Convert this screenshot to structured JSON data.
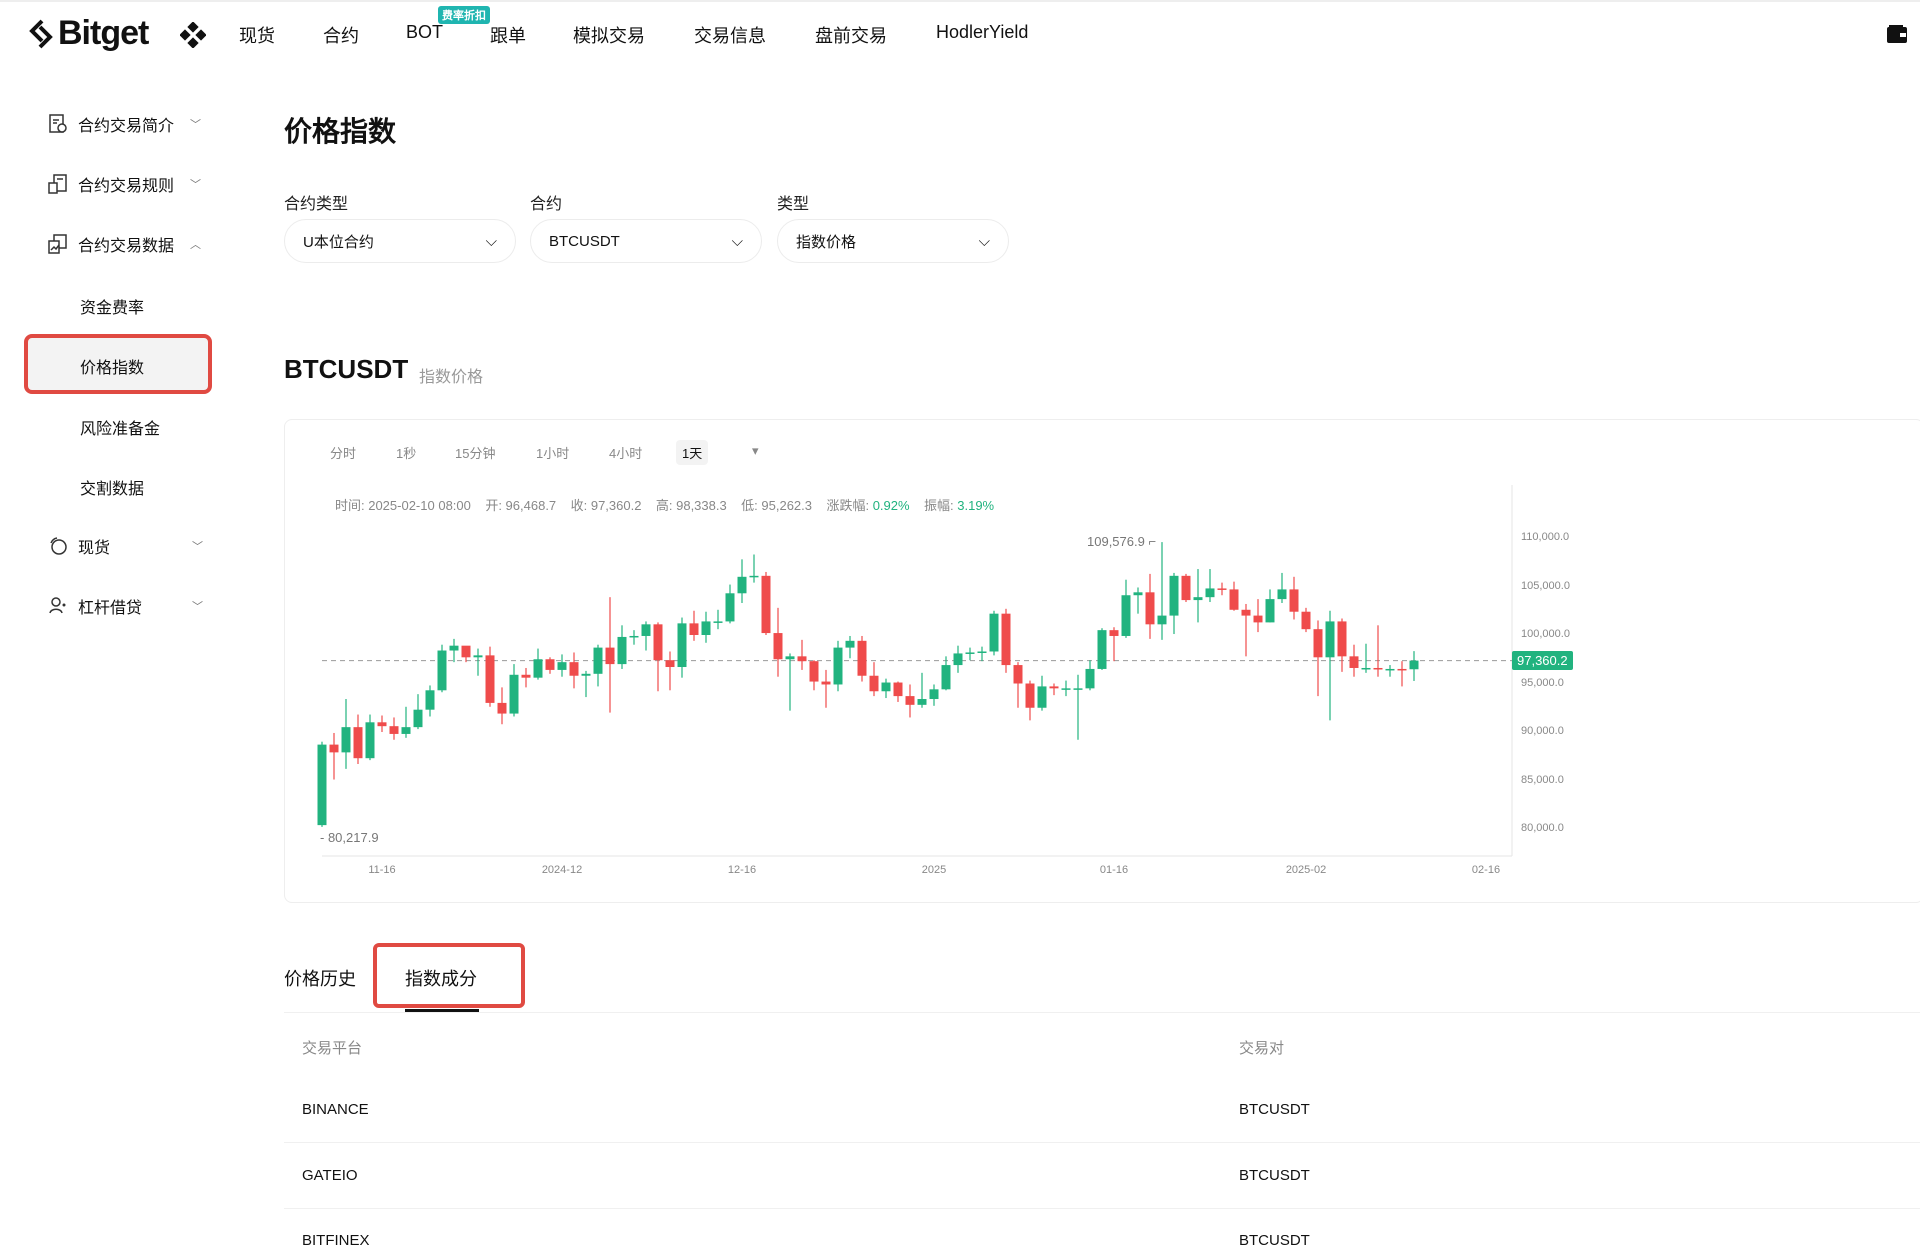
{
  "brand": "Bitget",
  "nav": {
    "items": [
      "现货",
      "合约",
      "BOT",
      "跟单",
      "模拟交易",
      "交易信息",
      "盘前交易",
      "HodlerYield"
    ],
    "bot_badge": "费率折扣"
  },
  "sidebar": {
    "items": [
      {
        "label": "合约交易简介",
        "icon": "doc-clock-icon",
        "chevron": "down"
      },
      {
        "label": "合约交易规则",
        "icon": "rules-icon",
        "chevron": "down"
      },
      {
        "label": "合约交易数据",
        "icon": "chart-data-icon",
        "chevron": "up"
      },
      {
        "label": "现货",
        "icon": "spot-icon",
        "chevron": "down"
      },
      {
        "label": "杠杆借贷",
        "icon": "margin-icon",
        "chevron": "down"
      }
    ],
    "sub_items": [
      "资金费率",
      "价格指数",
      "风险准备金",
      "交割数据"
    ],
    "active": "价格指数"
  },
  "page": {
    "title": "价格指数",
    "filters": [
      {
        "label": "合约类型",
        "value": "U本位合约"
      },
      {
        "label": "合约",
        "value": "BTCUSDT"
      },
      {
        "label": "类型",
        "value": "指数价格"
      }
    ],
    "symbol": "BTCUSDT",
    "symbol_sub": "指数价格"
  },
  "chart": {
    "intervals": [
      "分时",
      "1秒",
      "15分钟",
      "1小时",
      "4小时",
      "1天"
    ],
    "active_interval": "1天",
    "more": "▾",
    "info": {
      "time_label": "时间: 2025-02-10 08:00",
      "open_label": "开: 96,468.7",
      "close_label": "收: 97,360.2",
      "high_label": "高: 98,338.3",
      "low_label": "低: 95,262.3",
      "chg_label": "涨跌幅: ",
      "chg": "0.92%",
      "amp_label": "振幅: ",
      "amp": "3.19%"
    },
    "colors": {
      "up": "#21b37f",
      "down": "#ef4b4b"
    }
  },
  "chart_data": {
    "type": "candlestick",
    "x_start": "2024-11-11",
    "interval": "1d",
    "ylim": [
      77000,
      112000
    ],
    "yticks": [
      "110,000.0",
      "105,000.0",
      "100,000.0",
      "95,000.0",
      "90,000.0",
      "85,000.0",
      "80,000.0"
    ],
    "ytick_values": [
      110000,
      105000,
      100000,
      95000,
      90000,
      85000,
      80000
    ],
    "xticks": [
      "11-16",
      "2024-12",
      "12-16",
      "2025",
      "01-16",
      "2025-02",
      "02-16"
    ],
    "xtick_dates": [
      "2024-11-16",
      "2024-12-01",
      "2024-12-16",
      "2025-01-01",
      "2025-01-16",
      "2025-02-01",
      "2025-02-16"
    ],
    "last_price": 97360.2,
    "last_price_label": "97,360.2",
    "max_label": "109,576.9",
    "min_label": "80,217.9",
    "max": 109576.9,
    "min": 80217.9,
    "candles": [
      [
        80400,
        89000,
        80218,
        88700
      ],
      [
        88700,
        89900,
        85100,
        87900
      ],
      [
        87900,
        93400,
        86200,
        90500
      ],
      [
        90500,
        91800,
        86700,
        87300
      ],
      [
        87300,
        91800,
        87100,
        91000
      ],
      [
        91000,
        91700,
        90000,
        90600
      ],
      [
        90600,
        91500,
        89200,
        89800
      ],
      [
        89800,
        92600,
        89400,
        90500
      ],
      [
        90500,
        93900,
        90300,
        92300
      ],
      [
        92300,
        94800,
        91600,
        94300
      ],
      [
        94300,
        99000,
        94100,
        98400
      ],
      [
        98400,
        99600,
        97200,
        98900
      ],
      [
        98900,
        98700,
        97200,
        97700
      ],
      [
        97700,
        98600,
        95800,
        97900
      ],
      [
        97900,
        98800,
        92600,
        93000
      ],
      [
        93000,
        94600,
        90800,
        91900
      ],
      [
        91900,
        97000,
        91600,
        95900
      ],
      [
        95900,
        96600,
        94600,
        95600
      ],
      [
        95600,
        98600,
        95400,
        97500
      ],
      [
        97500,
        97700,
        96000,
        96400
      ],
      [
        96400,
        98000,
        95700,
        97200
      ],
      [
        97200,
        98200,
        94500,
        95800
      ],
      [
        95800,
        96300,
        93600,
        96000
      ],
      [
        96000,
        99000,
        94700,
        98700
      ],
      [
        98700,
        103900,
        92000,
        97000
      ],
      [
        97000,
        101000,
        96500,
        99800
      ],
      [
        99800,
        100500,
        99000,
        99900
      ],
      [
        99900,
        101400,
        98400,
        101100
      ],
      [
        101100,
        101300,
        94200,
        97400
      ],
      [
        97400,
        98300,
        94300,
        96700
      ],
      [
        96700,
        101800,
        95600,
        101200
      ],
      [
        101200,
        102500,
        99400,
        100000
      ],
      [
        100000,
        102400,
        99200,
        101400
      ],
      [
        101400,
        102600,
        100600,
        101400
      ],
      [
        101400,
        105200,
        101200,
        104300
      ],
      [
        104300,
        107800,
        103300,
        106000
      ],
      [
        106000,
        108300,
        105400,
        106100
      ],
      [
        106100,
        106500,
        100000,
        100200
      ],
      [
        100200,
        102800,
        95700,
        97500
      ],
      [
        97500,
        98100,
        92200,
        97800
      ],
      [
        97800,
        99500,
        96400,
        97300
      ],
      [
        97300,
        97400,
        94300,
        95200
      ],
      [
        95200,
        96400,
        92500,
        94900
      ],
      [
        94900,
        99400,
        94200,
        98700
      ],
      [
        98700,
        99900,
        97600,
        99400
      ],
      [
        99400,
        99900,
        95200,
        95800
      ],
      [
        95800,
        97200,
        93700,
        94200
      ],
      [
        94200,
        95500,
        93500,
        95100
      ],
      [
        95100,
        95200,
        93100,
        93700
      ],
      [
        93700,
        94900,
        91500,
        92800
      ],
      [
        92800,
        96100,
        92500,
        93400
      ],
      [
        93400,
        94900,
        92700,
        94400
      ],
      [
        94400,
        97800,
        94300,
        96900
      ],
      [
        96900,
        98900,
        96100,
        98100
      ],
      [
        98100,
        98700,
        97400,
        98200
      ],
      [
        98200,
        98800,
        97300,
        98300
      ],
      [
        98300,
        102500,
        97900,
        102200
      ],
      [
        102200,
        102700,
        96100,
        96900
      ],
      [
        96900,
        97200,
        92500,
        95000
      ],
      [
        95000,
        95300,
        91200,
        92500
      ],
      [
        92500,
        95800,
        92200,
        94700
      ],
      [
        94700,
        95000,
        93800,
        94500
      ],
      [
        94500,
        95300,
        93700,
        94500
      ],
      [
        94500,
        95900,
        89200,
        94500
      ],
      [
        94500,
        97400,
        94300,
        96500
      ],
      [
        96500,
        100700,
        96400,
        100500
      ],
      [
        100500,
        100800,
        97300,
        99900
      ],
      [
        99900,
        105700,
        99700,
        104100
      ],
      [
        104100,
        104900,
        102200,
        104400
      ],
      [
        104400,
        106300,
        99600,
        101100
      ],
      [
        101100,
        109576.9,
        99500,
        102000
      ],
      [
        102000,
        106400,
        100100,
        106100
      ],
      [
        106100,
        106300,
        103400,
        103600
      ],
      [
        103600,
        106800,
        101300,
        103900
      ],
      [
        103900,
        106800,
        103400,
        104800
      ],
      [
        104800,
        105400,
        104100,
        104700
      ],
      [
        104700,
        105500,
        102500,
        102600
      ],
      [
        102600,
        103200,
        97800,
        102000
      ],
      [
        102000,
        103700,
        100300,
        101300
      ],
      [
        101300,
        104700,
        101300,
        103700
      ],
      [
        103700,
        106400,
        103300,
        104700
      ],
      [
        104700,
        106000,
        101600,
        102400
      ],
      [
        102400,
        102800,
        100300,
        100600
      ],
      [
        100600,
        101500,
        93700,
        97700
      ],
      [
        97700,
        102500,
        91200,
        101400
      ],
      [
        101400,
        101700,
        96200,
        97800
      ],
      [
        97800,
        99000,
        95700,
        96600
      ],
      [
        96600,
        99100,
        96100,
        96600
      ],
      [
        96600,
        101000,
        95700,
        96500
      ],
      [
        96500,
        96900,
        95700,
        96500
      ],
      [
        96500,
        97300,
        94700,
        96470
      ],
      [
        96468.7,
        98338.3,
        95262.3,
        97360.2
      ]
    ]
  },
  "table": {
    "tabs": [
      "价格历史",
      "指数成分"
    ],
    "active_tab": "指数成分",
    "headers": [
      "交易平台",
      "交易对"
    ],
    "rows": [
      [
        "BINANCE",
        "BTCUSDT"
      ],
      [
        "GATEIO",
        "BTCUSDT"
      ],
      [
        "BITFINEX",
        "BTCUSDT"
      ]
    ]
  },
  "annotations": {
    "highlight_color": "#e04a42"
  }
}
